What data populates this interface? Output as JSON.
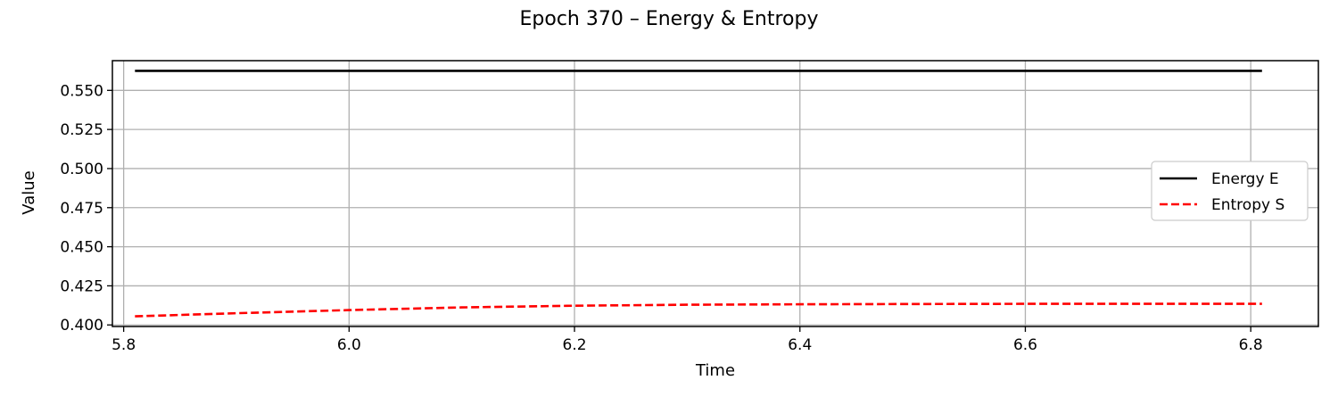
{
  "chart_data": {
    "type": "line",
    "title": "Epoch 370 – Energy & Entropy",
    "xlabel": "Time",
    "ylabel": "Value",
    "xlim": [
      5.79,
      6.86
    ],
    "ylim": [
      0.399,
      0.569
    ],
    "xticks": [
      5.8,
      6.0,
      6.2,
      6.4,
      6.6,
      6.8
    ],
    "xtick_labels": [
      "5.8",
      "6.0",
      "6.2",
      "6.4",
      "6.6",
      "6.8"
    ],
    "yticks": [
      0.4,
      0.425,
      0.45,
      0.475,
      0.5,
      0.525,
      0.55
    ],
    "ytick_labels": [
      "0.400",
      "0.425",
      "0.450",
      "0.475",
      "0.500",
      "0.525",
      "0.550"
    ],
    "grid": true,
    "legend_position": "center-right",
    "series": [
      {
        "name": "Energy E",
        "color": "#000000",
        "style": "solid",
        "x": [
          5.81,
          6.0,
          6.2,
          6.4,
          6.6,
          6.81
        ],
        "y": [
          0.5625,
          0.5625,
          0.5625,
          0.5625,
          0.5625,
          0.5625
        ]
      },
      {
        "name": "Entropy S",
        "color": "#ff0000",
        "style": "dashed",
        "x": [
          5.81,
          5.9,
          6.0,
          6.1,
          6.2,
          6.3,
          6.4,
          6.5,
          6.6,
          6.7,
          6.81
        ],
        "y": [
          0.4055,
          0.4075,
          0.4095,
          0.4112,
          0.4123,
          0.4129,
          0.4132,
          0.4134,
          0.4135,
          0.4135,
          0.4135
        ]
      }
    ]
  }
}
